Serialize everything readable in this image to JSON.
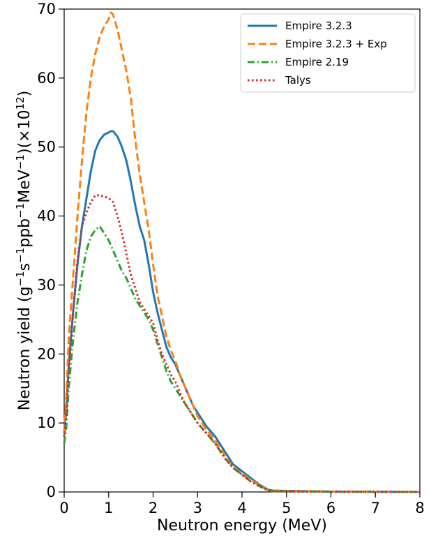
{
  "chart_data": {
    "type": "line",
    "xlabel": "Neutron energy (MeV)",
    "ylabel": {
      "prefix": "Neutron yield (g",
      "sup1": "−1",
      "mid1": "s",
      "sup2": "−1",
      "mid2": "ppb",
      "sup3": "−1",
      "mid3": "MeV",
      "sup4": "−1",
      "mid4": ")(×10",
      "sup5": "12",
      "suffix": ")"
    },
    "xlim": [
      0,
      8
    ],
    "ylim": [
      0,
      70
    ],
    "xticks": [
      0,
      1,
      2,
      3,
      4,
      5,
      6,
      7,
      8
    ],
    "yticks": [
      0,
      10,
      20,
      30,
      40,
      50,
      60,
      70
    ],
    "grid": false,
    "legend_position": "top-right",
    "series": [
      {
        "name": "Empire 3.2.3",
        "color": "#1f77b4",
        "style": "solid",
        "x": [
          0.0,
          0.05,
          0.1,
          0.2,
          0.3,
          0.4,
          0.5,
          0.6,
          0.7,
          0.8,
          0.9,
          1.0,
          1.05,
          1.1,
          1.2,
          1.3,
          1.4,
          1.5,
          1.6,
          1.7,
          1.8,
          1.9,
          2.0,
          2.1,
          2.2,
          2.3,
          2.4,
          2.5,
          2.6,
          2.7,
          2.8,
          2.9,
          3.0,
          3.1,
          3.2,
          3.4,
          3.6,
          3.8,
          4.0,
          4.2,
          4.4,
          4.6,
          4.7,
          5.0,
          6.0,
          7.0,
          8.0
        ],
        "y": [
          8.5,
          12.0,
          18.0,
          26.0,
          33.0,
          38.5,
          42.5,
          46.5,
          49.5,
          51.0,
          51.8,
          52.1,
          52.3,
          52.3,
          51.5,
          50.0,
          48.0,
          45.0,
          41.5,
          38.5,
          36.5,
          33.0,
          29.0,
          26.0,
          23.5,
          21.0,
          19.5,
          18.5,
          17.0,
          15.5,
          14.0,
          12.5,
          11.5,
          10.5,
          9.5,
          8.0,
          6.0,
          4.0,
          3.0,
          2.0,
          1.0,
          0.3,
          0.2,
          0.15,
          0.05,
          0.02,
          0.0
        ]
      },
      {
        "name": "Empire 3.2.3 + Exp",
        "color": "#ff7f0e",
        "style": "dashed",
        "x": [
          0.0,
          0.05,
          0.1,
          0.2,
          0.3,
          0.4,
          0.5,
          0.6,
          0.7,
          0.8,
          0.9,
          1.0,
          1.05,
          1.1,
          1.2,
          1.3,
          1.4,
          1.5,
          1.6,
          1.7,
          1.8,
          1.9,
          2.0,
          2.1,
          2.2,
          2.3,
          2.4,
          2.5,
          2.6,
          2.7,
          2.8,
          2.9,
          3.0,
          3.1,
          3.2,
          3.4,
          3.6,
          3.8,
          4.0,
          4.2,
          4.4,
          4.6,
          4.7,
          5.0,
          6.0,
          7.0,
          8.0
        ],
        "y": [
          8.5,
          14.0,
          22.0,
          31.0,
          40.0,
          48.0,
          55.0,
          60.0,
          63.5,
          66.0,
          67.5,
          68.5,
          69.5,
          69.2,
          67.0,
          64.0,
          61.0,
          57.0,
          51.0,
          46.0,
          42.0,
          38.0,
          33.0,
          28.5,
          25.5,
          22.5,
          20.5,
          19.0,
          17.0,
          15.5,
          14.0,
          12.5,
          11.0,
          10.0,
          9.0,
          7.5,
          5.5,
          3.5,
          2.7,
          1.8,
          0.9,
          0.25,
          0.2,
          0.15,
          0.05,
          0.02,
          0.0
        ]
      },
      {
        "name": "Empire 2.19",
        "color": "#2ca02c",
        "style": "dashdot",
        "x": [
          0.0,
          0.05,
          0.1,
          0.2,
          0.3,
          0.4,
          0.5,
          0.6,
          0.7,
          0.8,
          0.9,
          1.0,
          1.1,
          1.2,
          1.3,
          1.4,
          1.5,
          1.6,
          1.7,
          1.8,
          1.9,
          2.0,
          2.1,
          2.2,
          2.3,
          2.4,
          2.5,
          2.6,
          2.7,
          2.8,
          2.9,
          3.0,
          3.2,
          3.4,
          3.6,
          3.8,
          4.0,
          4.2,
          4.4,
          4.6,
          4.7,
          5.0,
          6.0,
          7.0,
          8.0
        ],
        "y": [
          7.0,
          9.5,
          15.0,
          22.0,
          27.5,
          31.5,
          35.0,
          37.0,
          38.0,
          38.5,
          37.5,
          36.5,
          35.0,
          33.5,
          32.0,
          31.0,
          29.5,
          28.0,
          27.0,
          26.0,
          25.0,
          23.5,
          21.5,
          19.5,
          17.5,
          16.0,
          15.0,
          14.0,
          13.0,
          12.0,
          11.0,
          10.0,
          8.5,
          7.0,
          5.0,
          3.5,
          2.5,
          1.5,
          0.8,
          0.2,
          0.1,
          0.08,
          0.03,
          0.01,
          0.0
        ]
      },
      {
        "name": "Talys",
        "color": "#d62728",
        "style": "dotted",
        "x": [
          0.0,
          0.05,
          0.1,
          0.2,
          0.3,
          0.4,
          0.5,
          0.6,
          0.7,
          0.8,
          0.9,
          1.0,
          1.1,
          1.2,
          1.3,
          1.4,
          1.5,
          1.6,
          1.7,
          1.8,
          1.9,
          2.0,
          2.1,
          2.2,
          2.3,
          2.4,
          2.5,
          2.6,
          2.7,
          2.8,
          2.9,
          3.0,
          3.2,
          3.4,
          3.6,
          3.8,
          4.0,
          4.2,
          4.4,
          4.6,
          4.7,
          5.0,
          6.0,
          7.0,
          8.0
        ],
        "y": [
          8.0,
          11.0,
          17.5,
          26.0,
          33.5,
          38.5,
          40.5,
          42.0,
          43.0,
          43.0,
          42.8,
          42.6,
          42.0,
          40.0,
          37.5,
          34.5,
          31.5,
          29.5,
          27.5,
          26.5,
          25.5,
          24.5,
          22.0,
          20.0,
          18.5,
          17.0,
          16.0,
          14.5,
          13.0,
          12.0,
          11.0,
          10.0,
          8.5,
          7.0,
          5.0,
          3.5,
          2.5,
          1.5,
          0.8,
          0.2,
          0.1,
          0.08,
          0.03,
          0.01,
          0.0
        ]
      }
    ]
  }
}
